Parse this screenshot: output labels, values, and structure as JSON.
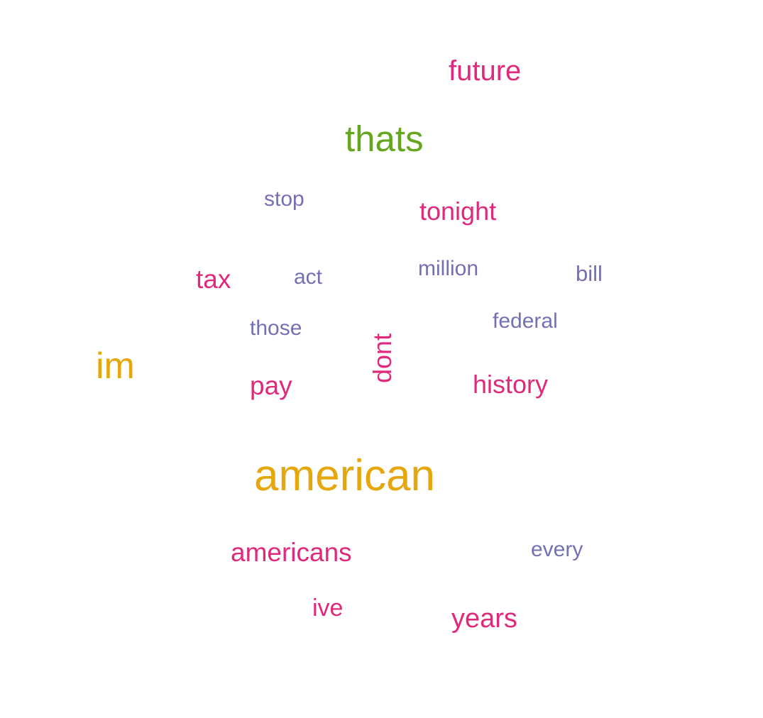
{
  "colors": {
    "pink": "#e0297a",
    "purple": "#7470b3",
    "gold": "#e6a70c",
    "green": "#66a61e",
    "background": "#ffffff"
  },
  "words": {
    "future": {
      "text": "future",
      "color": "#e0297a"
    },
    "thats": {
      "text": "thats",
      "color": "#66a61e"
    },
    "stop": {
      "text": "stop",
      "color": "#7470b3"
    },
    "tonight": {
      "text": "tonight",
      "color": "#e0297a"
    },
    "tax": {
      "text": "tax",
      "color": "#e0297a"
    },
    "act": {
      "text": "act",
      "color": "#7470b3"
    },
    "million": {
      "text": "million",
      "color": "#7470b3"
    },
    "bill": {
      "text": "bill",
      "color": "#7470b3"
    },
    "those": {
      "text": "those",
      "color": "#7470b3"
    },
    "federal": {
      "text": "federal",
      "color": "#7470b3"
    },
    "im": {
      "text": "im",
      "color": "#e6a70c"
    },
    "pay": {
      "text": "pay",
      "color": "#e0297a"
    },
    "dont": {
      "text": "dont",
      "color": "#e0297a"
    },
    "history": {
      "text": "history",
      "color": "#e0297a"
    },
    "american": {
      "text": "american",
      "color": "#e6a70c"
    },
    "americans": {
      "text": "americans",
      "color": "#e0297a"
    },
    "every": {
      "text": "every",
      "color": "#7470b3"
    },
    "ive": {
      "text": "ive",
      "color": "#e0297a"
    },
    "years": {
      "text": "years",
      "color": "#e0297a"
    }
  }
}
